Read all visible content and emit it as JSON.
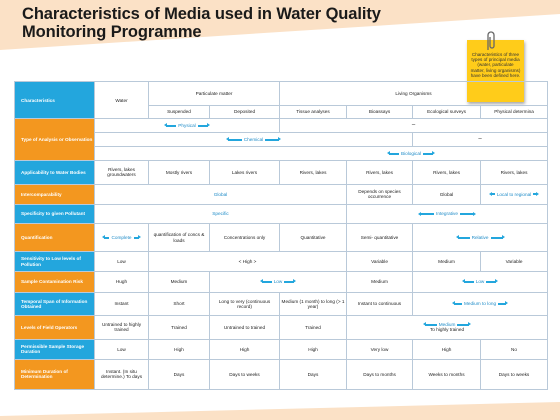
{
  "title": "Characteristics of Media used in Water Quality Monitoring Programme",
  "note": "Characteristics of three types of principal media (water, particulate matter, living organisms) have been defined here.",
  "colors": {
    "header_blue": "#23a6dd",
    "row_orange": "#f3971f",
    "note_yellow": "#ffcc1a",
    "deco_peach": "#fbe1c6"
  },
  "icons": {
    "clip": "paperclip-icon",
    "arrow": "double-arrow-icon"
  },
  "table": {
    "head": {
      "characteristics": "Characteristics",
      "water": "Water",
      "particulate": "Particulate matter",
      "living": "Living Organisms",
      "suspended": "Suspended",
      "deposited": "Deposited",
      "tissue": "Tissue analyses",
      "bioassays": "Bioassays",
      "ecological": "Ecological surveys",
      "physical": "Physical determina"
    },
    "r1": {
      "label": "Type of Analysis or Observation",
      "physical": "Physical",
      "dash1": "–",
      "chemical": "Chemical",
      "dash2": "–",
      "biological": "Biological"
    },
    "r2": {
      "label": "Applicability to Water Bodies",
      "water": "Rivers, lakes groundwaters",
      "suspended": "Mostly rivers",
      "deposited": "Lakes rivers",
      "tissue": "Rivers, lakes",
      "bioassays": "Rivers, lakes",
      "ecological": "Rivers, lakes",
      "physical": "Rivers, lakes"
    },
    "r3": {
      "label": "Intercomparability",
      "global": "Global",
      "bioassays": "Depends on species occurrence",
      "ecological": "Global",
      "physical": "Local to regional"
    },
    "r4": {
      "label": "Specificity to given Pollutant",
      "specific": "Specific",
      "integrative": "Integrative"
    },
    "r5": {
      "label": "Quantification",
      "complete": "Complete",
      "suspended": "quantification of concs & loads",
      "deposited": "Concentrations only",
      "tissue": "Quantitative",
      "bioassays": "Semi- quantitative",
      "relative": "Relative"
    },
    "r6": {
      "label": "Sensitivity to Low levels of Pollution",
      "water": "Low",
      "high": "< High >",
      "bioassays": "Variable",
      "ecological": "Medium",
      "physical": "Variable"
    },
    "r7": {
      "label": "Sample Contamination Risk",
      "water": "Hugh",
      "suspended": "Medium",
      "low1": "Low",
      "bioassays": "Medium",
      "low2": "Low"
    },
    "r8": {
      "label": "Temporal Span of Information Obtained",
      "water": "Instant",
      "suspended": "Short",
      "deposited": "Long to very (continuous record)",
      "tissue": "Medium (1 month) to long (> 1 year)",
      "bioassays": "Instant to continuous",
      "medium_long": "Medium to long"
    },
    "r9": {
      "label": "Levels of Field Operators",
      "water": "Untrained to highly trained",
      "suspended": "Trained",
      "deposited": "Untrained to trained",
      "tissue": "Trained",
      "medium": "Medium",
      "highly": "To highly trained"
    },
    "r10": {
      "label": "Permissible Sample Storage Duration",
      "water": "Low",
      "suspended": "High",
      "deposited": "High",
      "tissue": "High",
      "bioassays": "Very low",
      "ecological": "High",
      "physical": "No"
    },
    "r11": {
      "label": "Minimum Duration of Determination",
      "water": "Instant. (In situ determine.) To days",
      "suspended": "Days",
      "deposited": "Days to weeks",
      "tissue": "Days",
      "bioassays": "Days to months",
      "ecological": "Weeks to months",
      "physical": "Days to weeks"
    }
  }
}
